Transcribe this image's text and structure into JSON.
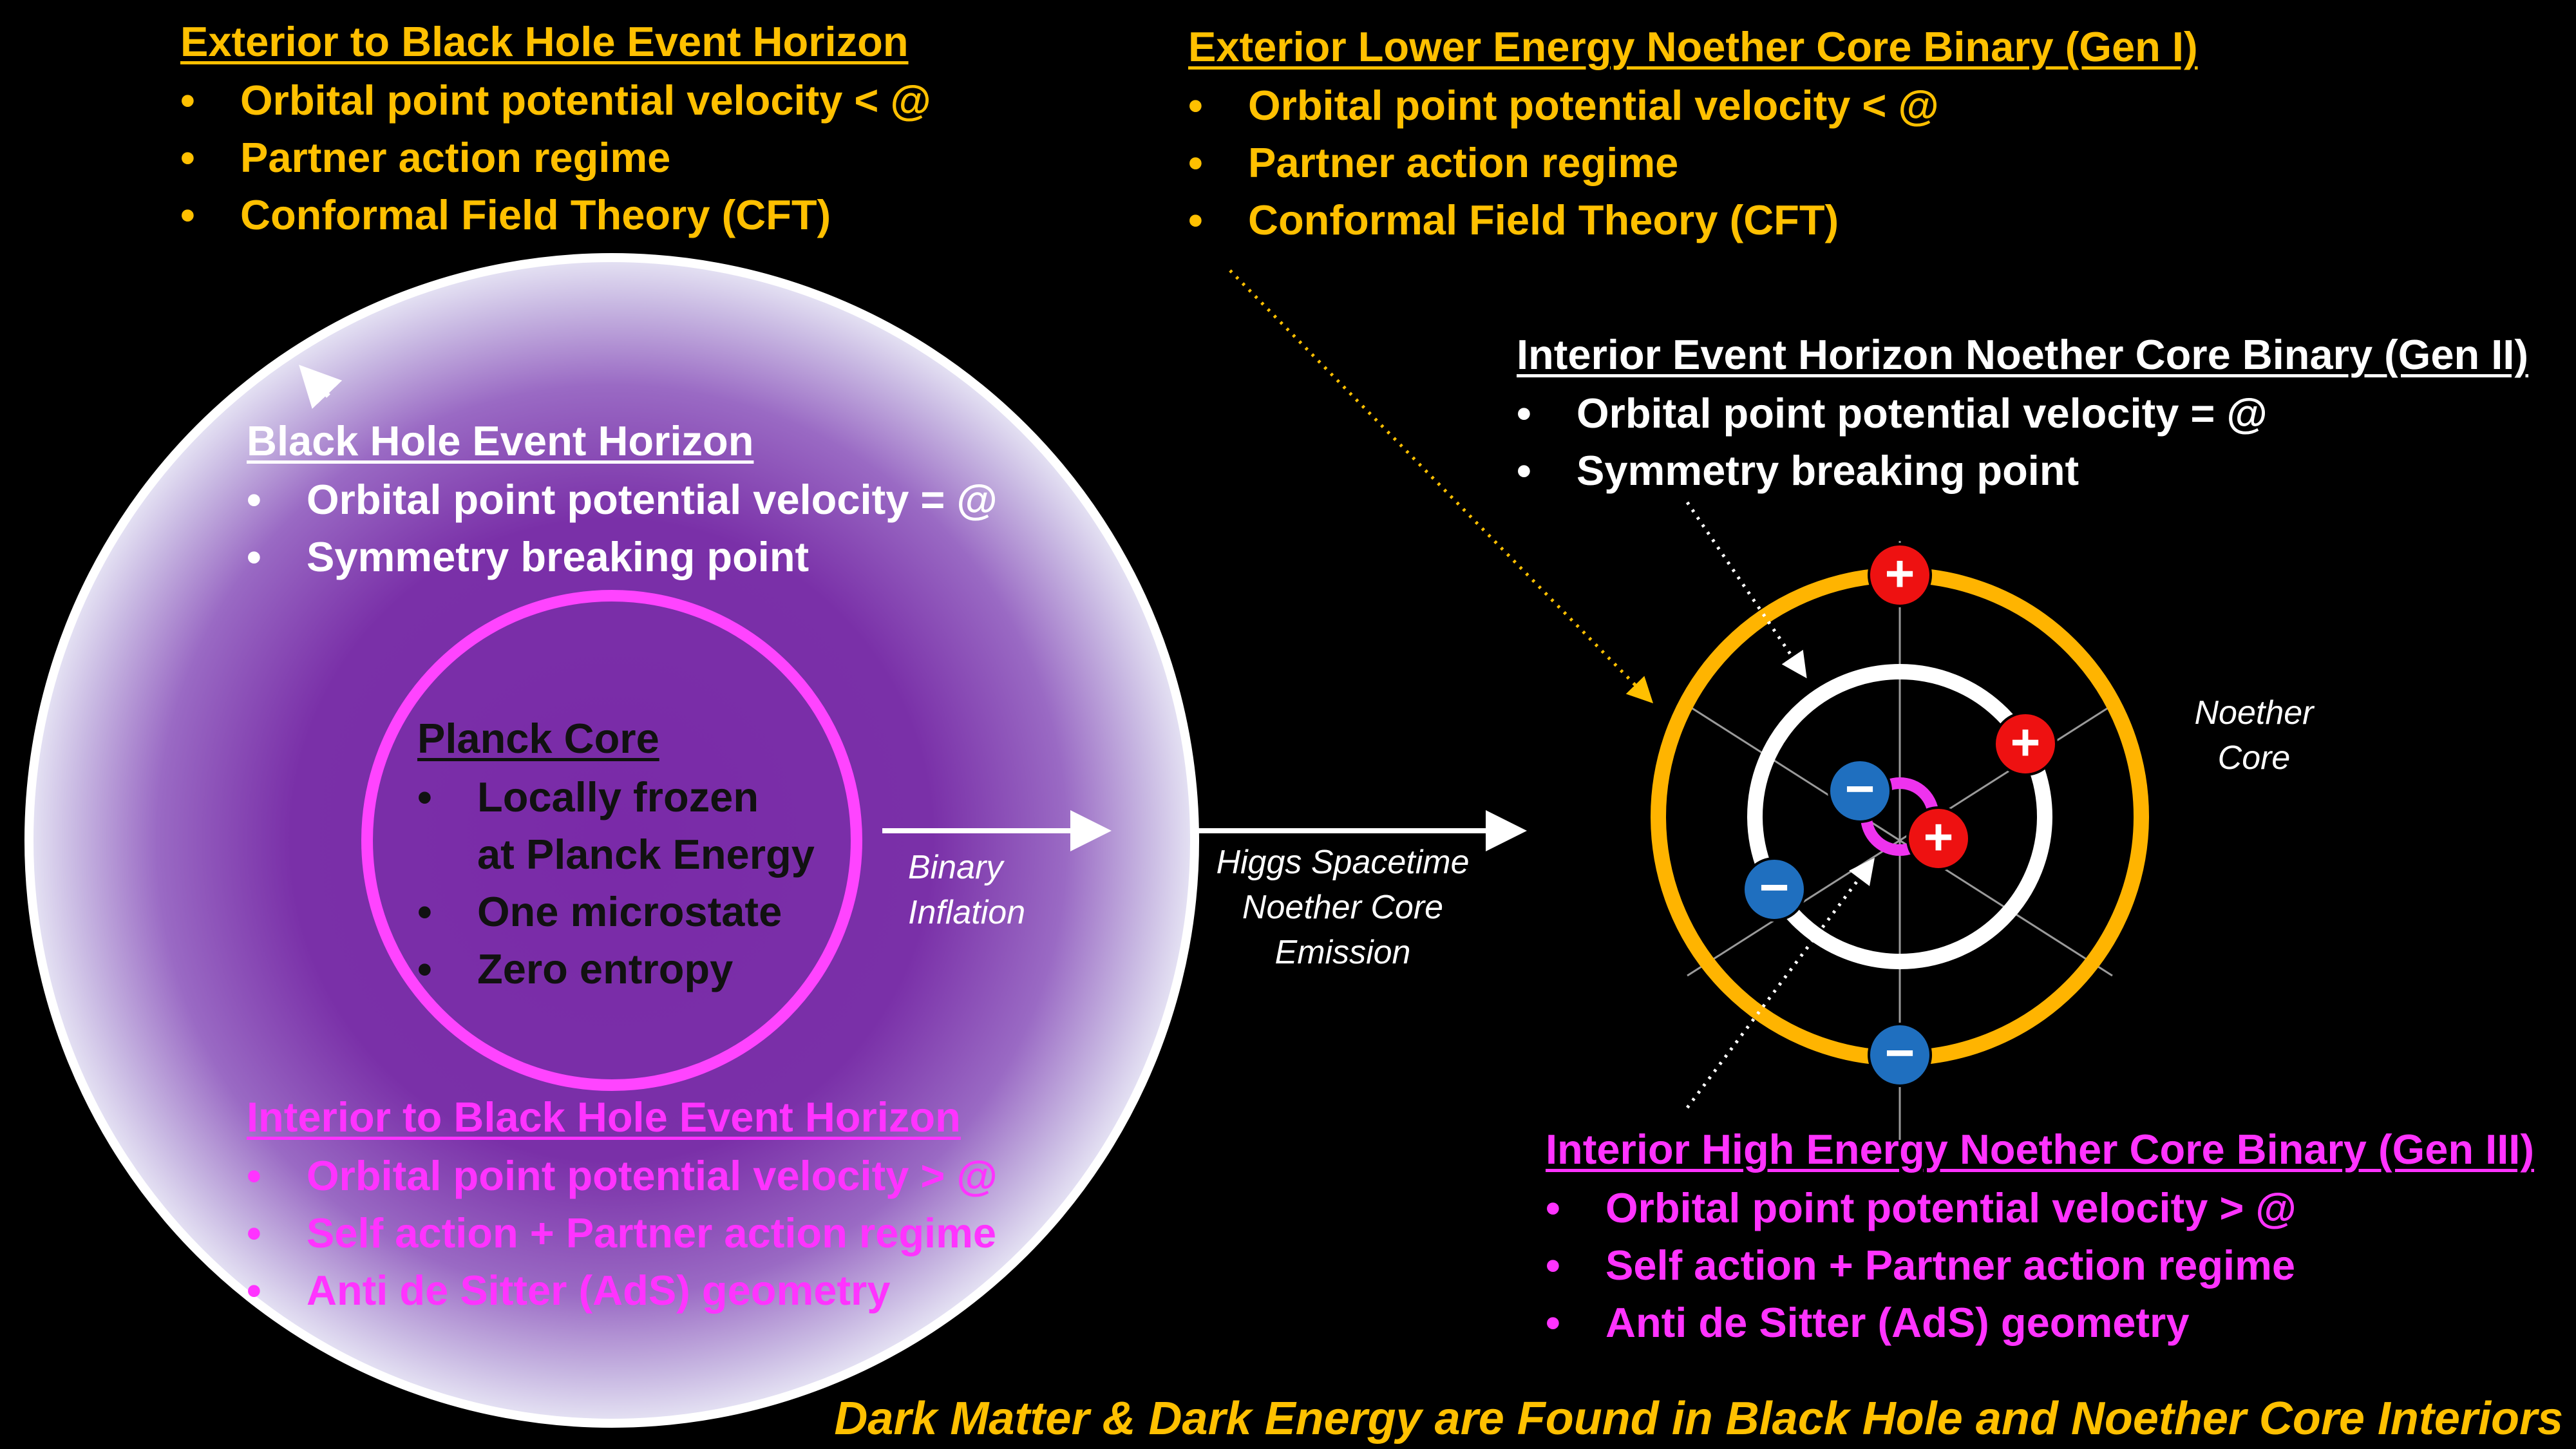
{
  "colors": {
    "background": "#000000",
    "gold": "#ffc000",
    "magenta": "#ff33ff",
    "plus": "#ee1111",
    "minus": "#1f6fbf",
    "bh_fill": "#7030a0"
  },
  "exterior_bh": {
    "title": "Exterior to Black Hole Event Horizon",
    "items": [
      "Orbital point potential velocity < @",
      "Partner action regime",
      "Conformal Field Theory (CFT)"
    ]
  },
  "exterior_core": {
    "title": "Exterior Lower Energy Noether Core Binary (Gen I)",
    "items": [
      "Orbital point potential velocity < @",
      "Partner action regime",
      "Conformal Field Theory (CFT)"
    ]
  },
  "bh_horizon": {
    "title": "Black Hole Event Horizon",
    "items": [
      "Orbital point potential velocity = @",
      "Symmetry breaking point"
    ]
  },
  "planck_core": {
    "title": "Planck Core",
    "items": [
      "Locally frozen",
      "at Planck Energy",
      "One microstate",
      "Zero entropy"
    ]
  },
  "interior_bh": {
    "title": "Interior to Black Hole Event Horizon",
    "items": [
      "Orbital point potential velocity > @",
      "Self action + Partner action regime",
      "Anti de Sitter (AdS) geometry"
    ]
  },
  "interior_horizon_core": {
    "title": "Interior Event Horizon Noether Core Binary (Gen II)",
    "items": [
      "Orbital point potential velocity = @",
      "Symmetry breaking point"
    ]
  },
  "interior_high_core": {
    "title": "Interior High Energy Noether Core Binary (Gen III)",
    "items": [
      "Orbital point potential velocity > @",
      "Self action + Partner action regime",
      "Anti de Sitter (AdS) geometry"
    ]
  },
  "labels": {
    "binary_inflation": [
      "Binary",
      "Inflation"
    ],
    "emission": [
      "Higgs Spacetime",
      "Noether Core",
      "Emission"
    ],
    "noether_core": [
      "Noether",
      "Core"
    ]
  },
  "charges": {
    "plus": "+",
    "minus": "−"
  },
  "footer": "Dark Matter & Dark Energy are Found in Black Hole and Noether Core Interiors"
}
